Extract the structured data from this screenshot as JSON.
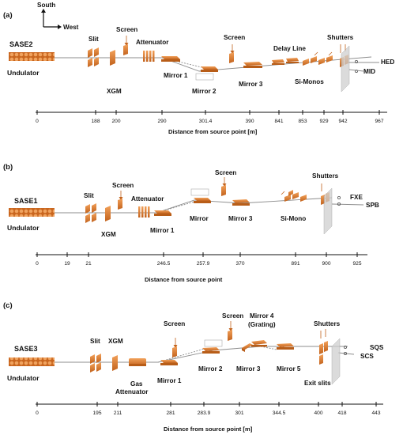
{
  "compass": {
    "south": "South",
    "west": "West"
  },
  "panels": [
    {
      "id": "(a)",
      "source_name": "SASE2",
      "undulator": "Undulator",
      "labels": {
        "slit": "Slit",
        "screen_1": "Screen",
        "attenuator": "Attenuator",
        "xgm": "XGM",
        "mirror_1": "Mirror 1",
        "mirror_2": "Mirror 2",
        "screen_2": "Screen",
        "mirror_3": "Mirror 3",
        "delay_line": "Delay Line",
        "si_monos": "Si-Monos",
        "shutters": "Shutters",
        "end_1": "HED",
        "end_2": "MID"
      },
      "ticks": [
        "0",
        "188",
        "200",
        "290",
        "301.4",
        "390",
        "841",
        "853",
        "929",
        "942",
        "967"
      ],
      "axis_title": "Distance from source point [m]"
    },
    {
      "id": "(b)",
      "source_name": "SASE1",
      "undulator": "Undulator",
      "labels": {
        "slit": "Slit",
        "screen_1": "Screen",
        "attenuator": "Attenuator",
        "xgm": "XGM",
        "mirror_1": "Mirror 1",
        "mirror": "Mirror",
        "screen_2": "Screen",
        "mirror_3": "Mirror 3",
        "si_mono": "Si-Mono",
        "shutters": "Shutters",
        "end_1": "FXE",
        "end_2": "SPB"
      },
      "ticks": [
        "0",
        "19",
        "21",
        "246.5",
        "257.9",
        "370",
        "891",
        "900",
        "925"
      ],
      "axis_title": "Distance from source point"
    },
    {
      "id": "(c)",
      "source_name": "SASE3",
      "undulator": "Undulator",
      "labels": {
        "slit": "Slit",
        "xgm": "XGM",
        "screen_1": "Screen",
        "gas": "Gas",
        "attenuator": "Attenuator",
        "mirror_1": "Mirror 1",
        "screen_2": "Screen",
        "mirror_2": "Mirror 2",
        "mirror_4": "Mirror 4",
        "grating": "(Grating)",
        "mirror_3": "Mirror 3",
        "mirror_5": "Mirror 5",
        "shutters": "Shutters",
        "exit_slits": "Exit slits",
        "end_1": "SQS",
        "end_2": "SCS"
      },
      "ticks": [
        "0",
        "195",
        "211",
        "281",
        "283.9",
        "301",
        "344.5",
        "400",
        "418",
        "443"
      ],
      "axis_title": "Distance from source point [m]"
    }
  ],
  "colors": {
    "component": "#e07a2c",
    "component_dark": "#b85d18",
    "beam": "#8c8c8c",
    "shutter_plate": "#cfcfcf"
  }
}
